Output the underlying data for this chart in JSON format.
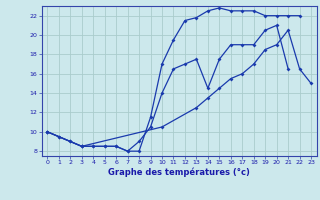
{
  "title": "Graphe des températures (°c)",
  "background_color": "#cce8ec",
  "grid_color": "#aacccc",
  "line_color": "#1a3aad",
  "xlim": [
    -0.5,
    23.5
  ],
  "ylim": [
    7.5,
    23.0
  ],
  "yticks": [
    8,
    10,
    12,
    14,
    16,
    18,
    20,
    22
  ],
  "xticks": [
    0,
    1,
    2,
    3,
    4,
    5,
    6,
    7,
    8,
    9,
    10,
    11,
    12,
    13,
    14,
    15,
    16,
    17,
    18,
    19,
    20,
    21,
    22,
    23
  ],
  "series1_x": [
    0,
    1,
    2,
    3,
    4,
    5,
    6,
    7,
    8,
    9,
    10,
    11,
    12,
    13,
    14,
    15,
    16,
    17,
    18,
    19,
    20,
    21,
    22
  ],
  "series1_y": [
    10.0,
    9.5,
    9.0,
    8.5,
    8.5,
    8.5,
    8.5,
    8.0,
    8.0,
    11.5,
    17.0,
    19.5,
    21.5,
    21.8,
    22.5,
    22.8,
    22.5,
    22.5,
    22.5,
    22.0,
    22.0,
    22.0,
    22.0
  ],
  "series2_x": [
    0,
    1,
    2,
    3,
    4,
    5,
    6,
    7,
    8,
    9,
    10,
    11,
    12,
    13,
    14,
    15,
    16,
    17,
    18,
    19,
    20,
    21
  ],
  "series2_y": [
    10.0,
    9.5,
    9.0,
    8.5,
    8.5,
    8.5,
    8.5,
    8.0,
    9.0,
    10.5,
    14.0,
    16.5,
    17.0,
    17.5,
    14.5,
    17.5,
    19.0,
    19.0,
    19.0,
    20.5,
    21.0,
    16.5
  ],
  "series3_x": [
    0,
    3,
    10,
    13,
    14,
    15,
    16,
    17,
    18,
    19,
    20,
    21,
    22,
    23
  ],
  "series3_y": [
    10.0,
    8.5,
    10.5,
    12.5,
    13.5,
    14.5,
    15.5,
    16.0,
    17.0,
    18.5,
    19.0,
    20.5,
    16.5,
    15.0
  ]
}
